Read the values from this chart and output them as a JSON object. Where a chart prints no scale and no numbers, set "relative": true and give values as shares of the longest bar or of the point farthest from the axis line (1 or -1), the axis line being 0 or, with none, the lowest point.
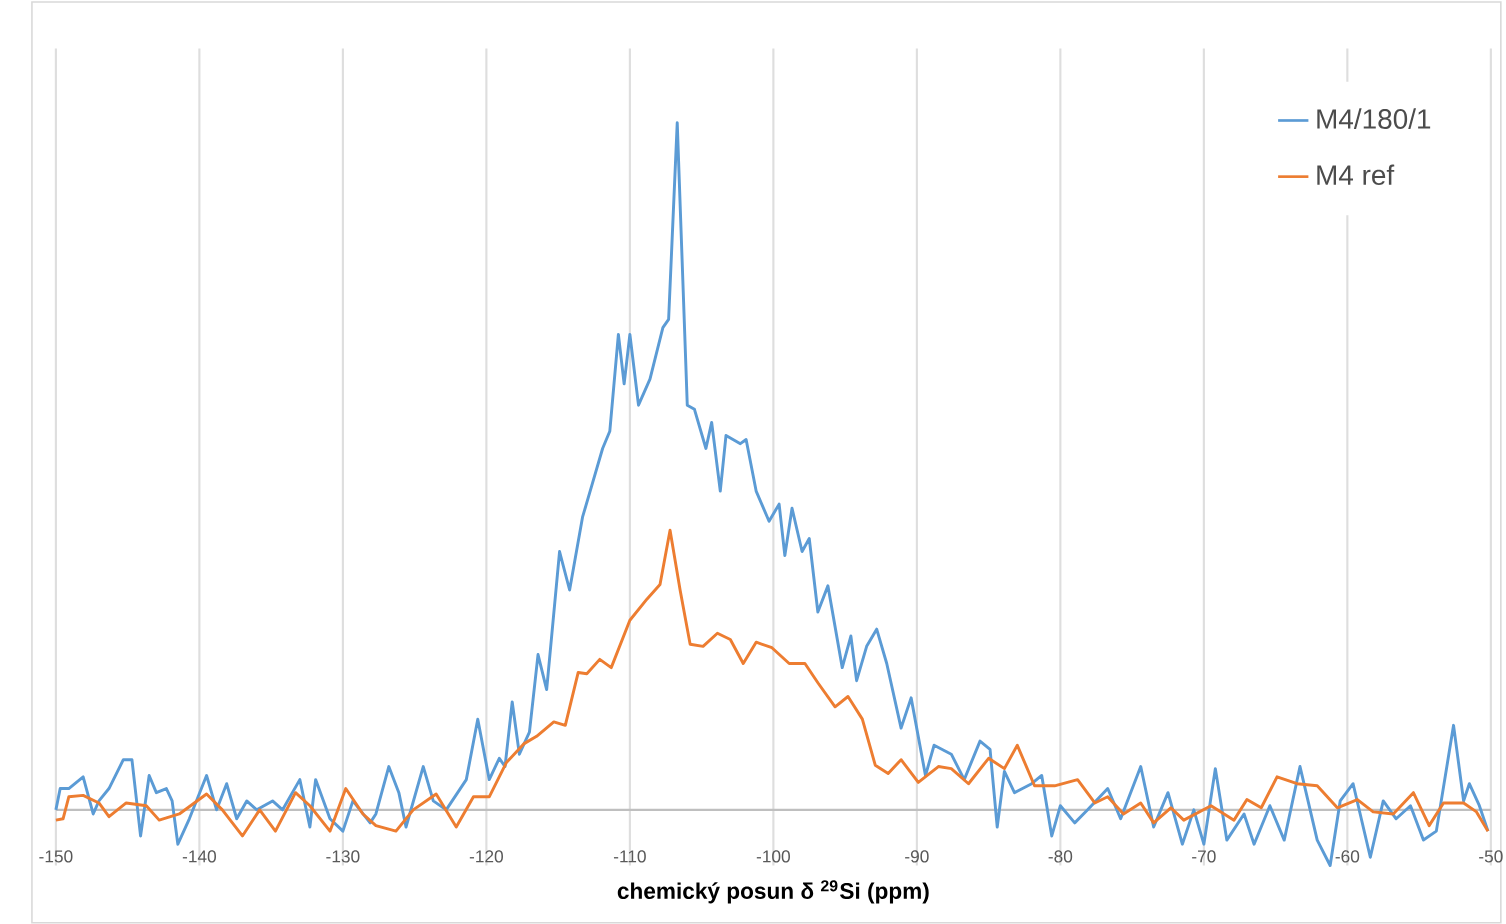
{
  "chart_data": {
    "type": "line",
    "relative": true,
    "xlabel": "**chemický posun δ $^{29}$Si (ppm)**",
    "xlim": [
      -150,
      -50
    ],
    "xticks": [
      -150,
      -140,
      -130,
      -120,
      -110,
      -100,
      -90,
      -80,
      -70,
      -60,
      -50
    ],
    "grid": true,
    "legend": "top right",
    "marker": "none",
    "line_style": "solid",
    "series": [
      {
        "name": "M4/180/1",
        "color": "#5b9bd5",
        "x": [
          -150,
          -149.7,
          -149.1,
          -148.1,
          -147.4,
          -147,
          -146.3,
          -145.3,
          -144.7,
          -144.1,
          -143.5,
          -143,
          -142.3,
          -141.9,
          -141.5,
          -140.7,
          -139.5,
          -138.8,
          -138.1,
          -137.4,
          -136.7,
          -136,
          -134.9,
          -134.2,
          -133,
          -132.3,
          -131.9,
          -130.9,
          -130,
          -129.3,
          -128.1,
          -127.7,
          -126.8,
          -126.1,
          -125.6,
          -124.4,
          -123.7,
          -122.8,
          -121.4,
          -120.6,
          -119.8,
          -119.1,
          -118.7,
          -118.2,
          -117.7,
          -117,
          -116.4,
          -115.8,
          -114.9,
          -114.2,
          -113.3,
          -112.6,
          -111.9,
          -111.4,
          -110.8,
          -110.4,
          -110,
          -109.4,
          -108.6,
          -107.7,
          -107.3,
          -106.7,
          -106,
          -105.5,
          -104.7,
          -104.3,
          -103.7,
          -103.3,
          -102.3,
          -101.9,
          -101.2,
          -100.3,
          -99.6,
          -99.2,
          -98.7,
          -98,
          -97.5,
          -96.9,
          -96.2,
          -95.2,
          -94.6,
          -94.2,
          -93.5,
          -92.8,
          -92.1,
          -91.1,
          -90.4,
          -89.4,
          -88.8,
          -87.6,
          -86.7,
          -85.6,
          -84.9,
          -84.4,
          -83.9,
          -83.2,
          -82,
          -81.3,
          -80.6,
          -80,
          -79,
          -78.1,
          -76.7,
          -75.8,
          -74.4,
          -73.5,
          -72.5,
          -71.5,
          -70.7,
          -70,
          -69.2,
          -68.4,
          -67.2,
          -66.5,
          -65.4,
          -64.4,
          -63.3,
          -62.1,
          -61.2,
          -60.5,
          -59.6,
          -58.4,
          -57.5,
          -56.6,
          -55.6,
          -54.7,
          -53.8,
          -52.6,
          -51.9,
          -51.5,
          -50.8,
          -50.2
        ],
        "values": [
          0,
          0.031,
          0.031,
          0.048,
          -0.006,
          0.013,
          0.031,
          0.073,
          0.073,
          -0.038,
          0.05,
          0.025,
          0.031,
          0.013,
          -0.05,
          -0.013,
          0.05,
          0,
          0.038,
          -0.013,
          0.013,
          0,
          0.013,
          0,
          0.044,
          -0.025,
          0.044,
          -0.013,
          -0.031,
          0.013,
          -0.019,
          -0.006,
          0.063,
          0.025,
          -0.025,
          0.063,
          0.013,
          0,
          0.044,
          0.132,
          0.044,
          0.075,
          0.063,
          0.157,
          0.081,
          0.113,
          0.226,
          0.175,
          0.376,
          0.32,
          0.426,
          0.476,
          0.526,
          0.551,
          0.692,
          0.62,
          0.692,
          0.589,
          0.627,
          0.702,
          0.714,
          1,
          0.589,
          0.583,
          0.526,
          0.564,
          0.464,
          0.545,
          0.533,
          0.539,
          0.464,
          0.42,
          0.445,
          0.37,
          0.439,
          0.376,
          0.395,
          0.288,
          0.326,
          0.207,
          0.253,
          0.188,
          0.238,
          0.263,
          0.213,
          0.119,
          0.163,
          0.05,
          0.094,
          0.081,
          0.044,
          0.1,
          0.088,
          -0.025,
          0.056,
          0.025,
          0.038,
          0.05,
          -0.038,
          0.006,
          -0.019,
          0,
          0.031,
          -0.013,
          0.063,
          -0.025,
          0.025,
          -0.05,
          0,
          -0.05,
          0.06,
          -0.044,
          -0.006,
          -0.05,
          0.006,
          -0.044,
          0.063,
          -0.044,
          -0.081,
          0.013,
          0.038,
          -0.069,
          0.013,
          -0.013,
          0.006,
          -0.044,
          -0.031,
          0.123,
          0.013,
          0.038,
          0.006,
          -0.031
        ]
      },
      {
        "name": "M4 ref",
        "color": "#ed7d31",
        "x": [
          -150,
          -149.5,
          -149.1,
          -148.1,
          -147,
          -146.3,
          -145.1,
          -143.7,
          -142.8,
          -141.4,
          -139.5,
          -138.4,
          -137,
          -135.8,
          -134.7,
          -133.3,
          -132.3,
          -130.9,
          -129.8,
          -128.6,
          -127.7,
          -126.3,
          -125.1,
          -123.5,
          -122.1,
          -120.9,
          -119.8,
          -118.6,
          -117.4,
          -116.5,
          -115.3,
          -114.5,
          -113.6,
          -113,
          -112.1,
          -111.3,
          -110,
          -108.8,
          -107.9,
          -107.2,
          -106.5,
          -105.8,
          -104.9,
          -103.9,
          -103,
          -102.1,
          -101.2,
          -100.1,
          -98.9,
          -97.8,
          -96.9,
          -95.7,
          -94.8,
          -93.8,
          -92.9,
          -92,
          -91.1,
          -89.9,
          -88.5,
          -87.6,
          -86.4,
          -85,
          -83.9,
          -83,
          -81.8,
          -80.4,
          -78.8,
          -77.6,
          -76.7,
          -75.6,
          -74.4,
          -73.5,
          -72.3,
          -71.4,
          -69.5,
          -67.9,
          -67,
          -66,
          -64.9,
          -63.5,
          -62.1,
          -60.7,
          -59.3,
          -58.2,
          -56.8,
          -55.4,
          -54.3,
          -53.3,
          -51.9,
          -51,
          -50.2
        ],
        "values": [
          -0.015,
          -0.013,
          0.019,
          0.021,
          0.01,
          -0.01,
          0.01,
          0.006,
          -0.015,
          -0.006,
          0.023,
          0,
          -0.038,
          0,
          -0.031,
          0.025,
          0.006,
          -0.031,
          0.031,
          -0.006,
          -0.023,
          -0.031,
          0,
          0.023,
          -0.025,
          0.019,
          0.019,
          0.069,
          0.096,
          0.107,
          0.128,
          0.123,
          0.2,
          0.198,
          0.219,
          0.207,
          0.276,
          0.307,
          0.328,
          0.407,
          0.32,
          0.241,
          0.238,
          0.257,
          0.248,
          0.213,
          0.244,
          0.236,
          0.213,
          0.213,
          0.185,
          0.15,
          0.165,
          0.132,
          0.065,
          0.053,
          0.073,
          0.04,
          0.063,
          0.06,
          0.038,
          0.075,
          0.06,
          0.094,
          0.035,
          0.035,
          0.044,
          0.01,
          0.019,
          -0.006,
          0.01,
          -0.019,
          0.003,
          -0.015,
          0.006,
          -0.015,
          0.015,
          0.003,
          0.048,
          0.038,
          0.035,
          0.003,
          0.015,
          -0.003,
          -0.006,
          0.025,
          -0.023,
          0.01,
          0.01,
          -0.003,
          -0.031
        ]
      }
    ]
  }
}
